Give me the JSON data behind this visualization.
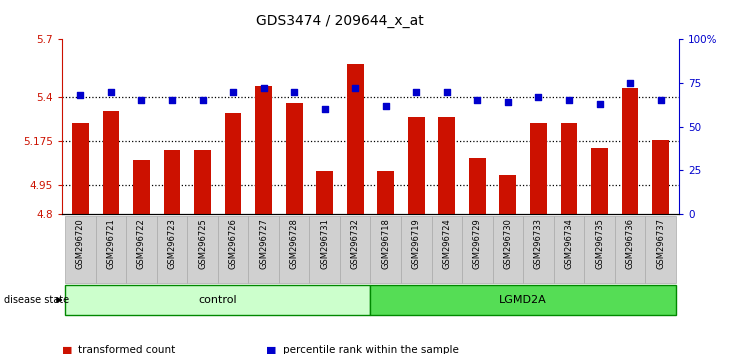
{
  "title": "GDS3474 / 209644_x_at",
  "samples": [
    "GSM296720",
    "GSM296721",
    "GSM296722",
    "GSM296723",
    "GSM296725",
    "GSM296726",
    "GSM296727",
    "GSM296728",
    "GSM296731",
    "GSM296732",
    "GSM296718",
    "GSM296719",
    "GSM296724",
    "GSM296729",
    "GSM296730",
    "GSM296733",
    "GSM296734",
    "GSM296735",
    "GSM296736",
    "GSM296737"
  ],
  "bar_values": [
    5.27,
    5.33,
    5.08,
    5.13,
    5.13,
    5.32,
    5.46,
    5.37,
    5.02,
    5.57,
    5.02,
    5.3,
    5.3,
    5.09,
    5.0,
    5.27,
    5.27,
    5.14,
    5.45,
    5.18
  ],
  "dot_values": [
    68,
    70,
    65,
    65,
    65,
    70,
    72,
    70,
    60,
    72,
    62,
    70,
    70,
    65,
    64,
    67,
    65,
    63,
    75,
    65
  ],
  "groups": [
    {
      "label": "control",
      "start": 0,
      "end": 10
    },
    {
      "label": "LGMD2A",
      "start": 10,
      "end": 20
    }
  ],
  "ylim_left": [
    4.8,
    5.7
  ],
  "ylim_right": [
    0,
    100
  ],
  "yticks_left": [
    4.8,
    4.95,
    5.175,
    5.4,
    5.7
  ],
  "yticks_right": [
    0,
    25,
    50,
    75,
    100
  ],
  "ytick_labels_left": [
    "4.8",
    "4.95",
    "5.175",
    "5.4",
    "5.7"
  ],
  "ytick_labels_right": [
    "0",
    "25",
    "50",
    "75",
    "100%"
  ],
  "bar_color": "#cc1100",
  "dot_color": "#0000cc",
  "bar_bottom": 4.8,
  "group_colors": [
    "#ccffcc",
    "#55dd55"
  ],
  "group_outline": "#008800",
  "disease_label": "disease state",
  "legend_items": [
    {
      "color": "#cc1100",
      "label": "transformed count"
    },
    {
      "color": "#0000cc",
      "label": "percentile rank within the sample"
    }
  ],
  "grid_color": "black",
  "ax_left_color": "#cc1100",
  "ax_right_color": "#0000cc",
  "title_fontsize": 10,
  "tick_fontsize": 7.5,
  "bg_color": "#ffffff"
}
